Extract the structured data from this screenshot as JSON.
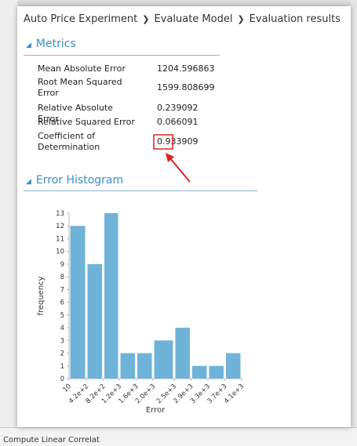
{
  "breadcrumb": [
    "Auto Price Experiment",
    "Evaluate Model",
    "Evaluation results"
  ],
  "metrics": {
    "title": "Metrics",
    "rows": [
      {
        "label": "Mean Absolute Error",
        "value": 1204.596863
      },
      {
        "label": "Root Mean Squared Error",
        "value": 1599.808699
      },
      {
        "label": "Relative Absolute Error",
        "value": 0.239092
      },
      {
        "label": "Relative Squared Error",
        "value": 0.066091
      },
      {
        "label": "Coefficient of Determination",
        "value": 0.933909
      }
    ]
  },
  "error_histogram": {
    "type": "histogram",
    "title": "Error Histogram",
    "x_label": "Error",
    "y_label": "frequency",
    "bins": [
      10,
      {
        "value": 420,
        "label": "4.2e+2"
      },
      {
        "value": 820,
        "label": "8.2e+2"
      },
      {
        "value": 1200,
        "label": "1.2e+3"
      },
      {
        "value": 1600,
        "label": "1.6e+3"
      },
      {
        "value": 2000,
        "label": "2.0e+3"
      },
      {
        "value": 2500,
        "label": "2.5e+3"
      },
      {
        "value": 2900,
        "label": "2.9e+3"
      },
      {
        "value": 3300,
        "label": "3.3e+3"
      },
      {
        "value": 3700,
        "label": "3.7e+3"
      },
      {
        "value": 4100,
        "label": "4.1e+3"
      }
    ],
    "counts": [
      12,
      9,
      13,
      2,
      2,
      3,
      4,
      1,
      1,
      2
    ],
    "color": "#6fb3d9",
    "xlim": [
      10,
      4100
    ],
    "ylim": [
      0,
      13
    ],
    "yticks": [
      0,
      1,
      2,
      3,
      4,
      5,
      6,
      7,
      8,
      9,
      10,
      11,
      12,
      13
    ]
  },
  "background": {
    "status_item": "Compute Linear Correlat"
  }
}
